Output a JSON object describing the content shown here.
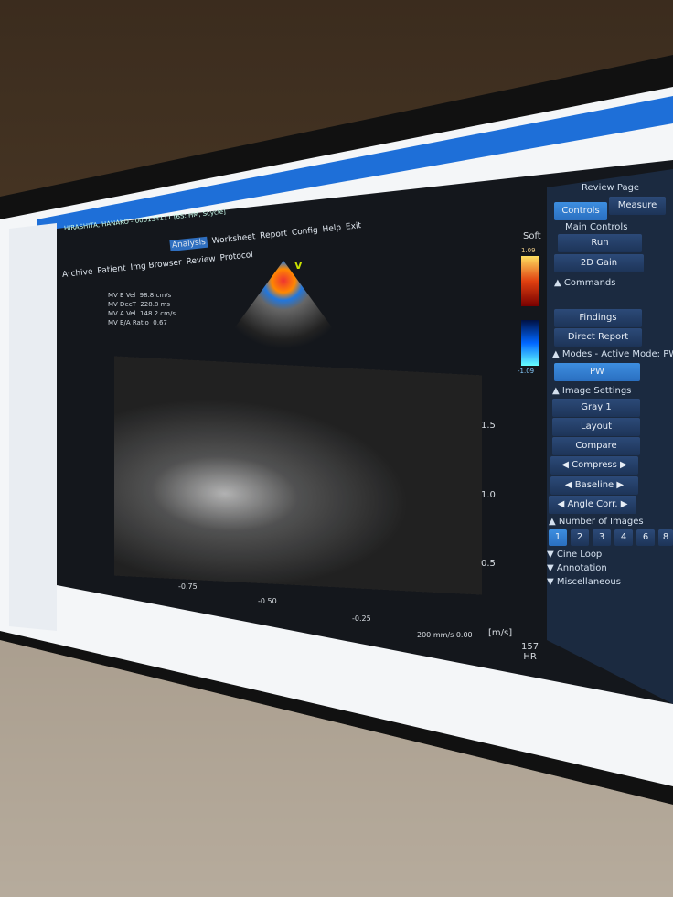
{
  "window": {
    "title": "[6S: HM, Scycle]",
    "patient": "HIRASHITA, HANAKO - 000134111"
  },
  "menu": [
    "Analysis",
    "Worksheet",
    "Report",
    "Config",
    "Help",
    "Exit"
  ],
  "subnav": [
    "Archive",
    "Patient",
    "Img Browser",
    "Review",
    "Protocol"
  ],
  "measurements": [
    {
      "label": "MV E Vel",
      "value": "98.8 cm/s"
    },
    {
      "label": "MV DecT",
      "value": "228.8 ms"
    },
    {
      "label": "MV A Vel",
      "value": "148.2 cm/s"
    },
    {
      "label": "MV E/A Ratio",
      "value": "0.67"
    }
  ],
  "image": {
    "marker": "V",
    "soft_label": "Soft",
    "color_max": "1.09",
    "color_min": "-1.09",
    "velocity_ticks": [
      "1.5",
      "1.0",
      "0.5"
    ],
    "time_ticks": [
      "-0.75",
      "-0.50",
      "-0.25",
      "0.00"
    ],
    "unit": "[m/s]",
    "sweep": "200 mm/s",
    "hr_value": "157",
    "hr_label": "HR"
  },
  "panel": {
    "review_page": "Review Page",
    "tabs": [
      "Controls",
      "Measure"
    ],
    "main_controls": "Main Controls",
    "run": "Run",
    "gain": "2D Gain",
    "commands": "Commands",
    "findings": "Findings",
    "direct_report": "Direct Report",
    "modes": "Modes - Active Mode: PW",
    "pw": "PW",
    "image_settings": "Image Settings",
    "gray": "Gray 1",
    "layout": "Layout",
    "compare": "Compare",
    "compress": "Compress",
    "baseline": "Baseline",
    "angle": "Angle Corr.",
    "num_images": "Number of Images",
    "num_options": [
      "1",
      "2",
      "3",
      "4",
      "6",
      "8"
    ],
    "cine": "Cine Loop",
    "annotation": "Annotation",
    "misc": "Miscellaneous"
  },
  "colors": {
    "accent": "#2f6fc0",
    "panel": "#1b2a40",
    "trace": "#2fd0a0"
  }
}
